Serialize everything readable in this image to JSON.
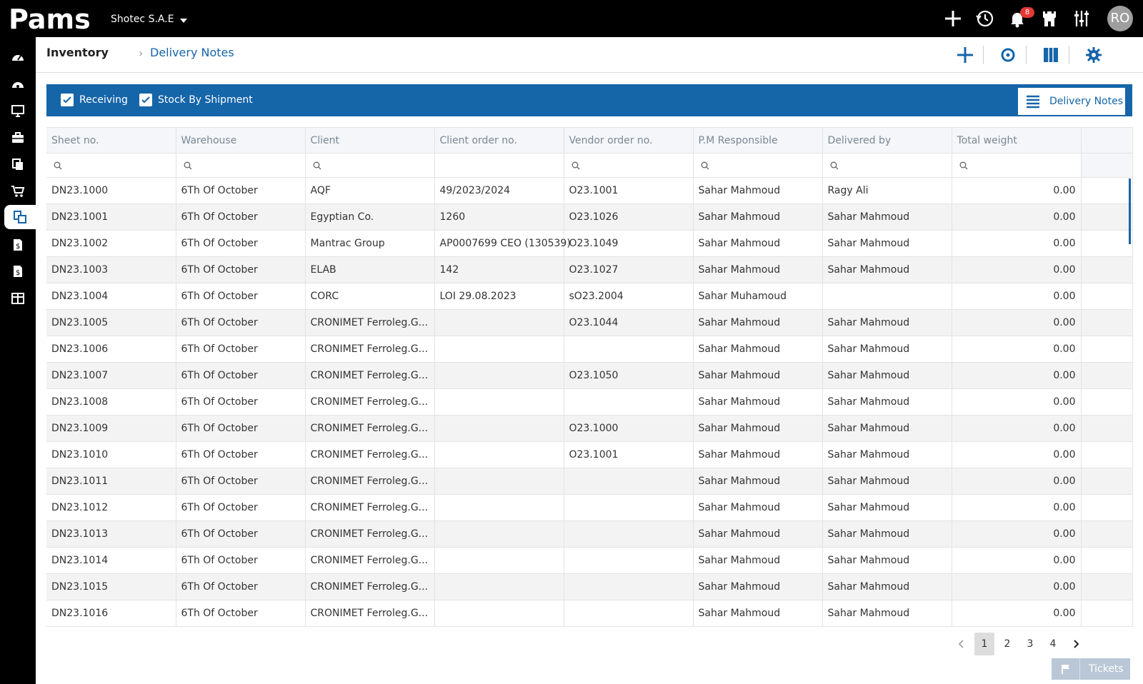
{
  "app": {
    "logo_text": "Pams",
    "company": "Shotec S.A.E",
    "notifications_count": "8",
    "avatar_initials": "RO"
  },
  "breadcrumb": {
    "root": "Inventory",
    "current": "Delivery Notes"
  },
  "toolbar": {
    "filters": [
      {
        "label": "Receiving",
        "checked": true
      },
      {
        "label": "Stock By Shipment",
        "checked": true
      }
    ],
    "active_tab": "Delivery Notes"
  },
  "table": {
    "columns": [
      "Sheet no.",
      "Warehouse",
      "Client",
      "Client order no.",
      "Vendor order no.",
      "P.M Responsible",
      "Delivered by",
      "Total weight"
    ],
    "rows": [
      [
        "DN23.1000",
        "6Th Of October",
        "AQF",
        "49/2023/2024",
        "O23.1001",
        "Sahar Mahmoud",
        "Ragy Ali",
        "0.00"
      ],
      [
        "DN23.1001",
        "6Th Of October",
        "Egyptian Co.",
        "1260",
        "O23.1026",
        "Sahar Mahmoud",
        "Sahar Mahmoud",
        "0.00"
      ],
      [
        "DN23.1002",
        "6Th Of October",
        "Mantrac Group",
        "AP0007699 CEO (130539)",
        "O23.1049",
        "Sahar Mahmoud",
        "Sahar Mahmoud",
        "0.00"
      ],
      [
        "DN23.1003",
        "6Th Of October",
        "ELAB",
        "142",
        "O23.1027",
        "Sahar Mahmoud",
        "Sahar Mahmoud",
        "0.00"
      ],
      [
        "DN23.1004",
        "6Th Of October",
        "CORC",
        "LOI 29.08.2023",
        "sO23.2004",
        "Sahar Muhamoud",
        "",
        "0.00"
      ],
      [
        "DN23.1005",
        "6Th Of October",
        "CRONIMET Ferroleg.G...",
        "",
        "O23.1044",
        "Sahar Mahmoud",
        "Sahar Mahmoud",
        "0.00"
      ],
      [
        "DN23.1006",
        "6Th Of October",
        "CRONIMET Ferroleg.G...",
        "",
        "",
        "Sahar Mahmoud",
        "Sahar Mahmoud",
        "0.00"
      ],
      [
        "DN23.1007",
        "6Th Of October",
        "CRONIMET Ferroleg.G...",
        "",
        "O23.1050",
        "Sahar Mahmoud",
        "Sahar Mahmoud",
        "0.00"
      ],
      [
        "DN23.1008",
        "6Th Of October",
        "CRONIMET Ferroleg.G...",
        "",
        "",
        "Sahar Mahmoud",
        "Sahar Mahmoud",
        "0.00"
      ],
      [
        "DN23.1009",
        "6Th Of October",
        "CRONIMET Ferroleg.G...",
        "",
        "O23.1000",
        "Sahar Mahmoud",
        "Sahar Mahmoud",
        "0.00"
      ],
      [
        "DN23.1010",
        "6Th Of October",
        "CRONIMET Ferroleg.G...",
        "",
        "O23.1001",
        "Sahar Mahmoud",
        "Sahar Mahmoud",
        "0.00"
      ],
      [
        "DN23.1011",
        "6Th Of October",
        "CRONIMET Ferroleg.G...",
        "",
        "",
        "Sahar Mahmoud",
        "Sahar Mahmoud",
        "0.00"
      ],
      [
        "DN23.1012",
        "6Th Of October",
        "CRONIMET Ferroleg.G...",
        "",
        "",
        "Sahar Mahmoud",
        "Sahar Mahmoud",
        "0.00"
      ],
      [
        "DN23.1013",
        "6Th Of October",
        "CRONIMET Ferroleg.G...",
        "",
        "",
        "Sahar Mahmoud",
        "Sahar Mahmoud",
        "0.00"
      ],
      [
        "DN23.1014",
        "6Th Of October",
        "CRONIMET Ferroleg.G...",
        "",
        "",
        "Sahar Mahmoud",
        "Sahar Mahmoud",
        "0.00"
      ],
      [
        "DN23.1015",
        "6Th Of October",
        "CRONIMET Ferroleg.G...",
        "",
        "",
        "Sahar Mahmoud",
        "Sahar Mahmoud",
        "0.00"
      ],
      [
        "DN23.1016",
        "6Th Of October",
        "CRONIMET Ferroleg.G...",
        "",
        "",
        "Sahar Mahmoud",
        "Sahar Mahmoud",
        "0.00"
      ]
    ]
  },
  "pagination": {
    "pages": [
      "1",
      "2",
      "3",
      "4"
    ],
    "current": "1"
  },
  "footer": {
    "tickets_label": "Tickets"
  },
  "colors": {
    "primary": "#1565a9",
    "topbar": "#000000",
    "badge": "#e53935"
  },
  "icons": {
    "topbar": [
      "plus-icon",
      "history-icon",
      "bell-icon",
      "castle-icon",
      "sliders-icon"
    ],
    "sidebar": [
      "dashboard-icon",
      "dashboard-alt-icon",
      "monitor-icon",
      "briefcase-icon",
      "documents-icon",
      "cart-icon",
      "inventory-icon",
      "invoice-icon",
      "invoice-alt-icon",
      "reports-icon"
    ],
    "header": [
      "add-icon",
      "refresh-icon",
      "columns-icon",
      "settings-icon"
    ]
  }
}
